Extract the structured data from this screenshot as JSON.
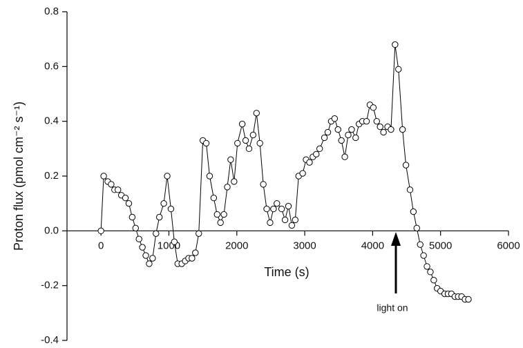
{
  "chart_data": {
    "type": "line",
    "xlabel": "Time (s)",
    "ylabel": "Proton flux (pmol cm⁻² s⁻¹)",
    "annotation": "light on",
    "color": "#000000",
    "marker_fill": "#ffffff",
    "xlim": [
      -500,
      6000
    ],
    "xticks": [
      0,
      1000,
      2000,
      3000,
      4000,
      5000,
      6000
    ],
    "ylim": [
      -0.4,
      0.8
    ],
    "yticks": [
      0.8,
      0.6,
      0.4,
      0.2,
      {
        "value": 0,
        "label": "0.0"
      },
      -0.2,
      -0.4
    ],
    "x": [
      0,
      40,
      100,
      150,
      200,
      250,
      300,
      360,
      410,
      460,
      510,
      560,
      610,
      660,
      710,
      760,
      810,
      860,
      925,
      975,
      1030,
      1080,
      1130,
      1190,
      1240,
      1290,
      1340,
      1390,
      1440,
      1500,
      1550,
      1600,
      1660,
      1710,
      1760,
      1810,
      1860,
      1910,
      1960,
      2010,
      2080,
      2130,
      2180,
      2240,
      2290,
      2340,
      2390,
      2440,
      2490,
      2540,
      2590,
      2660,
      2710,
      2760,
      2810,
      2860,
      2910,
      2970,
      3020,
      3070,
      3120,
      3170,
      3220,
      3290,
      3340,
      3390,
      3440,
      3490,
      3540,
      3590,
      3640,
      3690,
      3750,
      3800,
      3850,
      3910,
      3960,
      4010,
      4060,
      4110,
      4160,
      4220,
      4270,
      4330,
      4380,
      4440,
      4490,
      4550,
      4600,
      4650,
      4700,
      4750,
      4800,
      4850,
      4900,
      4950,
      5000,
      5060,
      5110,
      5160,
      5210,
      5260,
      5310,
      5360,
      5410
    ],
    "values": [
      0.0,
      0.2,
      0.18,
      0.17,
      0.15,
      0.15,
      0.13,
      0.12,
      0.1,
      0.05,
      0.01,
      -0.03,
      -0.06,
      -0.09,
      -0.12,
      -0.1,
      -0.01,
      0.05,
      0.1,
      0.2,
      0.08,
      -0.04,
      -0.12,
      -0.12,
      -0.11,
      -0.1,
      -0.1,
      -0.08,
      -0.01,
      0.33,
      0.32,
      0.2,
      0.12,
      0.06,
      0.03,
      0.06,
      0.16,
      0.26,
      0.18,
      0.32,
      0.39,
      0.33,
      0.3,
      0.35,
      0.43,
      0.32,
      0.17,
      0.08,
      0.03,
      0.08,
      0.1,
      0.08,
      0.04,
      0.09,
      0.02,
      0.04,
      0.2,
      0.21,
      0.26,
      0.25,
      0.27,
      0.28,
      0.3,
      0.34,
      0.36,
      0.4,
      0.41,
      0.37,
      0.33,
      0.27,
      0.35,
      0.37,
      0.34,
      0.39,
      0.4,
      0.4,
      0.46,
      0.45,
      0.4,
      0.38,
      0.36,
      0.38,
      0.37,
      0.68,
      0.59,
      0.37,
      0.24,
      0.15,
      0.07,
      0.01,
      -0.05,
      -0.09,
      -0.13,
      -0.15,
      -0.18,
      -0.21,
      -0.22,
      -0.23,
      -0.23,
      -0.23,
      -0.24,
      -0.24,
      -0.24,
      -0.25,
      -0.25
    ]
  }
}
